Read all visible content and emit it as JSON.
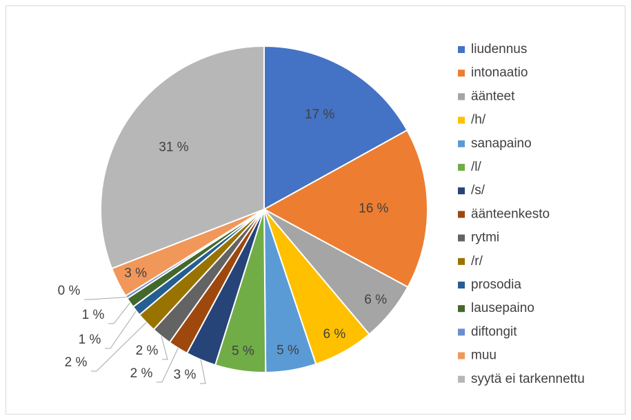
{
  "chart_data": {
    "type": "pie",
    "categories": [
      "liudennus",
      "intonaatio",
      "äänteet",
      "/h/",
      "sanapaino",
      "/l/",
      "/s/",
      "äänteenkesto",
      "rytmi",
      "/r/",
      "prosodia",
      "lausepaino",
      "diftongit",
      "muu",
      "syytä ei tarkennettu"
    ],
    "values": [
      17,
      16,
      6,
      6,
      5,
      5,
      3,
      2,
      2,
      2,
      1,
      1,
      0.3,
      3,
      31
    ],
    "value_labels": [
      "17 %",
      "16 %",
      "6 %",
      "6 %",
      "5 %",
      "5 %",
      "3 %",
      "2 %",
      "2 %",
      "2 %",
      "1 %",
      "1 %",
      "0 %",
      "3 %",
      "31 %"
    ],
    "colors": [
      "#4472c4",
      "#ed7d31",
      "#a5a5a5",
      "#ffc000",
      "#5b9bd5",
      "#70ad47",
      "#264478",
      "#9e480e",
      "#636363",
      "#997300",
      "#255e91",
      "#43682b",
      "#698ed0",
      "#f1975a",
      "#b7b7b7"
    ],
    "legend": "right"
  }
}
